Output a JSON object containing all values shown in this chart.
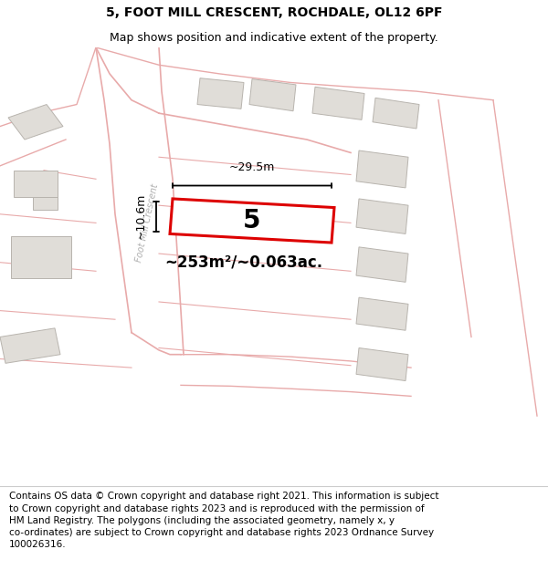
{
  "title": "5, FOOT MILL CRESCENT, ROCHDALE, OL12 6PF",
  "subtitle": "Map shows position and indicative extent of the property.",
  "footer_lines": [
    "Contains OS data © Crown copyright and database right 2021. This information is subject to Crown copyright and database rights 2023 and is reproduced with the permission of",
    "HM Land Registry. The polygons (including the associated geometry, namely x, y co-ordinates) are subject to Crown copyright and database rights 2023 Ordnance Survey",
    "100026316."
  ],
  "map_bg": "#ffffff",
  "plot_outline_color": "#dd0000",
  "road_outline_color": "#e8aaaa",
  "plot_fill": "#ffffff",
  "building_color": "#e0ddd8",
  "building_edge_color": "#b8b4ae",
  "parcel_edge_color": "#e8aaaa",
  "area_text": "~253m²/~0.063ac.",
  "label_5": "5",
  "dim_width": "~29.5m",
  "dim_height": "~10.6m",
  "road_label": "Foot Mill Crescent",
  "title_fontsize": 10,
  "subtitle_fontsize": 9,
  "footer_fontsize": 7.5
}
